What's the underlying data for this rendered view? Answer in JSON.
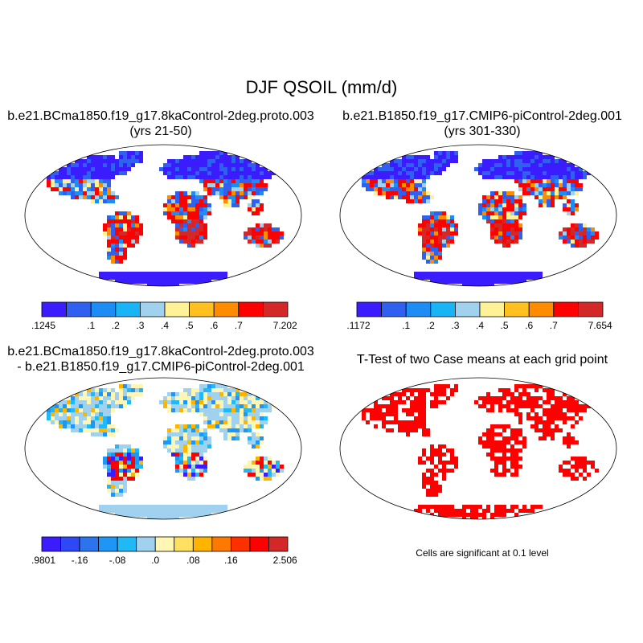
{
  "title": "DJF QSOIL (mm/d)",
  "panels": [
    {
      "line1": "b.e21.BCma1850.f19_g17.8kaControl-2deg.proto.003",
      "line2": "(yrs 21-50)",
      "colorbar": {
        "colors": [
          "#3a1cff",
          "#3060f0",
          "#1e8cf5",
          "#18b4f5",
          "#a0d2f0",
          "#fff296",
          "#ffc020",
          "#ff8c00",
          "#ff0000",
          "#d42828"
        ],
        "labels": [
          "-.1245",
          ".1",
          ".2",
          ".3",
          ".4",
          ".5",
          ".6",
          ".7",
          "7.2028"
        ]
      }
    },
    {
      "line1": "b.e21.B1850.f19_g17.CMIP6-piControl-2deg.001",
      "line2": "(yrs 301-330)",
      "colorbar": {
        "colors": [
          "#3a1cff",
          "#3060f0",
          "#1e8cf5",
          "#18b4f5",
          "#a0d2f0",
          "#fff296",
          "#ffc020",
          "#ff8c00",
          "#ff0000",
          "#d42828"
        ],
        "labels": [
          "-.1172",
          ".1",
          ".2",
          ".3",
          ".4",
          ".5",
          ".6",
          ".7",
          "7.6549"
        ]
      }
    },
    {
      "line1": "b.e21.BCma1850.f19_g17.8kaControl-2deg.proto.003",
      "line2": "- b.e21.B1850.f19_g17.CMIP6-piControl-2deg.001",
      "colorbar": {
        "colors": [
          "#3a1cff",
          "#2f48f5",
          "#2c74ee",
          "#1e96f5",
          "#20b8f5",
          "#a0d2f0",
          "#fff6b4",
          "#ffe060",
          "#ffb400",
          "#ff7800",
          "#ff3000",
          "#ff0000",
          "#d42828"
        ],
        "labels": [
          "-.9801",
          "-.16",
          "-.08",
          ".0",
          ".08",
          ".16",
          "2.5065"
        ]
      }
    },
    {
      "line1": "T-Test of two Case means at each grid point",
      "line2": "",
      "note": "Cells are significant at 0.1 level"
    }
  ]
}
